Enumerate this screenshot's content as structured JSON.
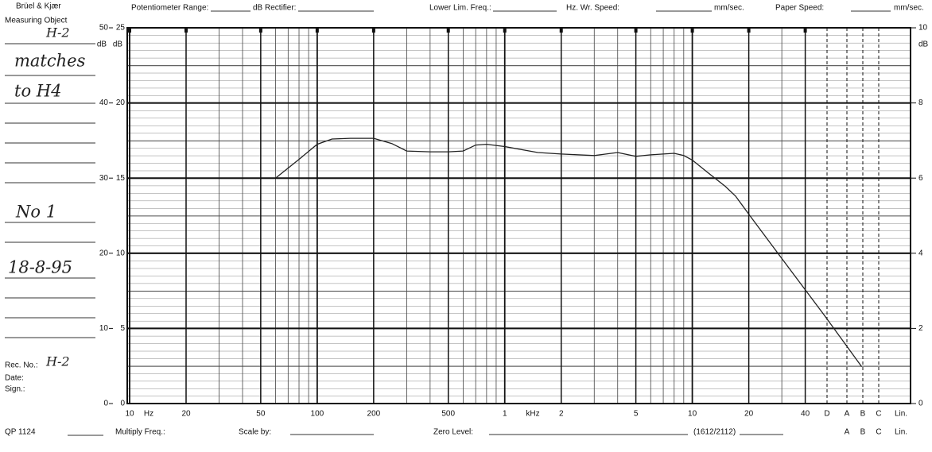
{
  "header": {
    "brand": "Brüel & Kjær",
    "fields": [
      "Potentiometer Range:",
      "dB Rectifier:",
      "Lower Lim. Freq.:",
      "Hz. Wr. Speed:",
      "mm/sec.",
      "Paper Speed:",
      "mm/sec."
    ]
  },
  "left_panel": {
    "measuring_object": "Measuring Object",
    "handwritten_notes": [
      "H-2",
      "matches",
      "to H4",
      "No 1",
      "18-8-95"
    ],
    "rec_no": "Rec. No.:",
    "rec_no_value": "H-2",
    "date": "Date:",
    "sign": "Sign.:",
    "form_code": "QP 1124"
  },
  "footer": {
    "fields": [
      "Multiply Freq.:",
      "Scale by:",
      "Zero Level:",
      "(1612/2112)"
    ],
    "weighting_top": [
      "D",
      "A",
      "B",
      "C",
      "Lin."
    ],
    "weighting_bottom": [
      "A",
      "B",
      "C",
      "Lin."
    ]
  },
  "chart_data": {
    "type": "line",
    "x_scale": "log",
    "grid": true,
    "color": "#222222",
    "x_unit_hz": "Hz",
    "x_unit_khz": "kHz",
    "y_unit_left": "dB",
    "y_unit_inner": "dB",
    "y_unit_right": "dB",
    "xlim": [
      10,
      150000
    ],
    "xticks": [
      10,
      20,
      50,
      100,
      200,
      500,
      {
        "value": 1000,
        "label": "1"
      },
      {
        "value": 2000,
        "label": "2"
      },
      {
        "value": 5000,
        "label": "5"
      },
      {
        "value": 10000,
        "label": "10"
      },
      {
        "value": 20000,
        "label": "20"
      },
      {
        "value": 40000,
        "label": "40"
      }
    ],
    "ylim": [
      0,
      50
    ],
    "yticks": [
      0,
      10,
      20,
      30,
      40,
      50
    ],
    "y2lim": [
      0,
      25
    ],
    "y2ticks": [
      0,
      5,
      10,
      15,
      20,
      25
    ],
    "y3lim": [
      0,
      10
    ],
    "y3ticks": [
      0,
      2,
      4,
      6,
      8,
      10
    ],
    "x": [
      60,
      80,
      100,
      120,
      150,
      200,
      250,
      300,
      400,
      500,
      600,
      700,
      800,
      1000,
      1500,
      2000,
      3000,
      4000,
      5000,
      6000,
      7000,
      8000,
      9000,
      10000,
      12000,
      15000,
      17000,
      20000,
      30000,
      50000,
      80000
    ],
    "values": [
      30.0,
      32.5,
      34.5,
      35.2,
      35.3,
      35.3,
      34.6,
      33.6,
      33.5,
      33.5,
      33.6,
      34.4,
      34.5,
      34.2,
      33.4,
      33.2,
      33.0,
      33.4,
      32.9,
      33.1,
      33.2,
      33.3,
      33.0,
      32.4,
      30.8,
      28.9,
      27.6,
      25.2,
      19.3,
      11.9,
      4.9
    ]
  }
}
